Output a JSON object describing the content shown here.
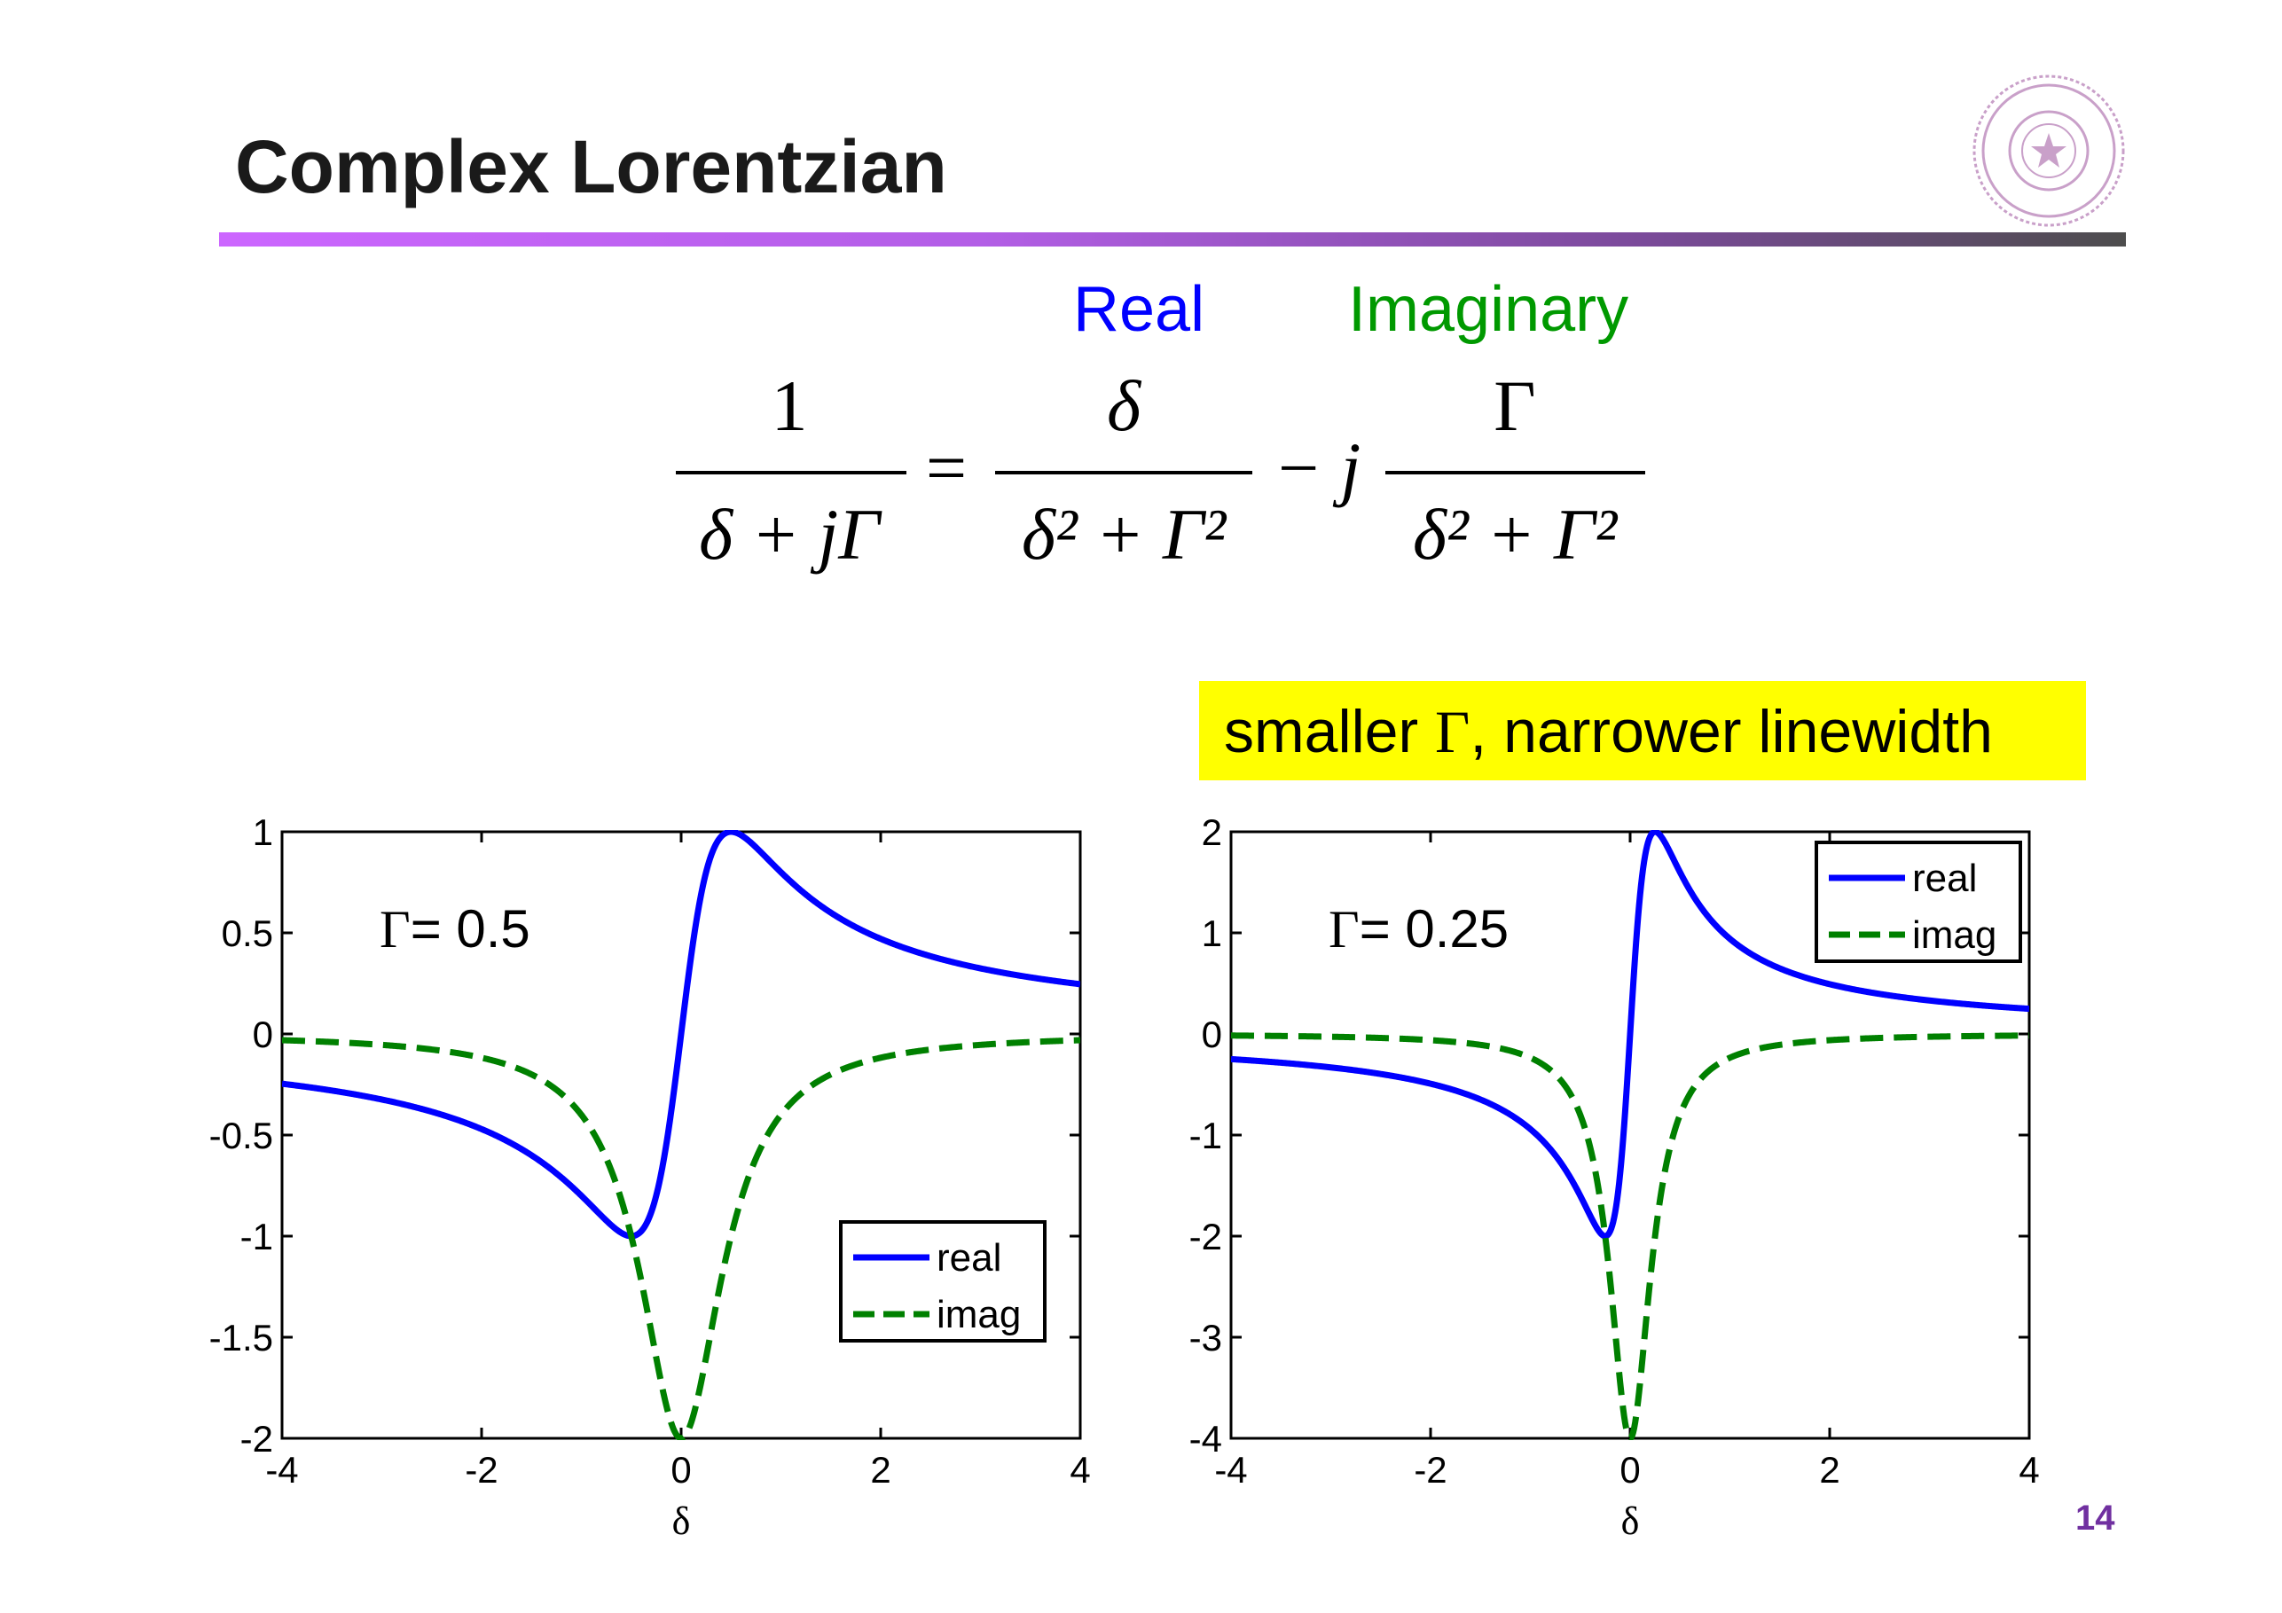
{
  "slide": {
    "title": "Complex Lorentzian",
    "page_number": "14",
    "accent_color": "#cc66ff"
  },
  "equation": {
    "real_label": "Real",
    "real_color": "#0000ff",
    "imag_label": "Imaginary",
    "imag_color": "#009900",
    "lhs_numerator": "1",
    "lhs_denominator": "δ + jΓ",
    "equals": "=",
    "real_numerator": "δ",
    "real_denominator": "δ² + Γ²",
    "minus_j": "− j",
    "imag_numerator": "Γ",
    "imag_denominator": "δ² + Γ²"
  },
  "callout": {
    "text_before": "smaller ",
    "gamma": "Γ",
    "text_after": ", narrower linewidth",
    "background": "#ffff00"
  },
  "chart_data": [
    {
      "type": "line",
      "gamma": 0.5,
      "annotation_symbol": "Γ",
      "annotation_value": "= 0.5",
      "xlabel": "δ",
      "xlim": [
        -4,
        4
      ],
      "ylim": [
        -2,
        1
      ],
      "xticks": [
        "-4",
        "-2",
        "0",
        "2",
        "4"
      ],
      "yticks": [
        "-2",
        "-1.5",
        "-1",
        "-0.5",
        "0",
        "0.5",
        "1"
      ],
      "legend_placement": "lower-right",
      "series": [
        {
          "name": "real",
          "color": "#0000ff",
          "style": "solid",
          "formula": "δ/(δ²+Γ²)",
          "x": [
            -4,
            -3,
            -2,
            -1.5,
            -1,
            -0.75,
            -0.5,
            -0.25,
            0,
            0.25,
            0.5,
            0.75,
            1,
            1.5,
            2,
            3,
            4
          ],
          "y": [
            -0.246,
            -0.324,
            -0.471,
            -0.6,
            -0.8,
            -0.923,
            -1.0,
            -0.8,
            0,
            0.8,
            1.0,
            0.923,
            0.8,
            0.6,
            0.471,
            0.324,
            0.246
          ]
        },
        {
          "name": "imag",
          "color": "#008000",
          "style": "dashed",
          "formula": "-Γ/(δ²+Γ²)",
          "x": [
            -4,
            -3,
            -2,
            -1.5,
            -1,
            -0.75,
            -0.5,
            -0.25,
            0,
            0.25,
            0.5,
            0.75,
            1,
            1.5,
            2,
            3,
            4
          ],
          "y": [
            -0.031,
            -0.054,
            -0.118,
            -0.2,
            -0.4,
            -0.615,
            -1.0,
            -1.6,
            -2.0,
            -1.6,
            -1.0,
            -0.615,
            -0.4,
            -0.2,
            -0.118,
            -0.054,
            -0.031
          ]
        }
      ]
    },
    {
      "type": "line",
      "gamma": 0.25,
      "annotation_symbol": "Γ",
      "annotation_value": "= 0.25",
      "xlabel": "δ",
      "xlim": [
        -4,
        4
      ],
      "ylim": [
        -4,
        2
      ],
      "xticks": [
        "-4",
        "-2",
        "0",
        "2",
        "4"
      ],
      "yticks": [
        "-4",
        "-3",
        "-2",
        "-1",
        "0",
        "1",
        "2"
      ],
      "legend_placement": "top-right",
      "series": [
        {
          "name": "real",
          "color": "#0000ff",
          "style": "solid",
          "formula": "δ/(δ²+Γ²)",
          "x": [
            -4,
            -3,
            -2,
            -1,
            -0.5,
            -0.25,
            0,
            0.25,
            0.5,
            1,
            2,
            3,
            4
          ],
          "y": [
            -0.249,
            -0.331,
            -0.492,
            -0.941,
            -1.6,
            -2.0,
            0,
            2.0,
            1.6,
            0.941,
            0.492,
            0.331,
            0.249
          ]
        },
        {
          "name": "imag",
          "color": "#008000",
          "style": "dashed",
          "formula": "-Γ/(δ²+Γ²)",
          "x": [
            -4,
            -3,
            -2,
            -1,
            -0.5,
            -0.25,
            0,
            0.25,
            0.5,
            1,
            2,
            3,
            4
          ],
          "y": [
            -0.016,
            -0.028,
            -0.062,
            -0.235,
            -0.8,
            -2.0,
            -4.0,
            -2.0,
            -0.8,
            -0.235,
            -0.062,
            -0.028,
            -0.016
          ]
        }
      ]
    }
  ]
}
